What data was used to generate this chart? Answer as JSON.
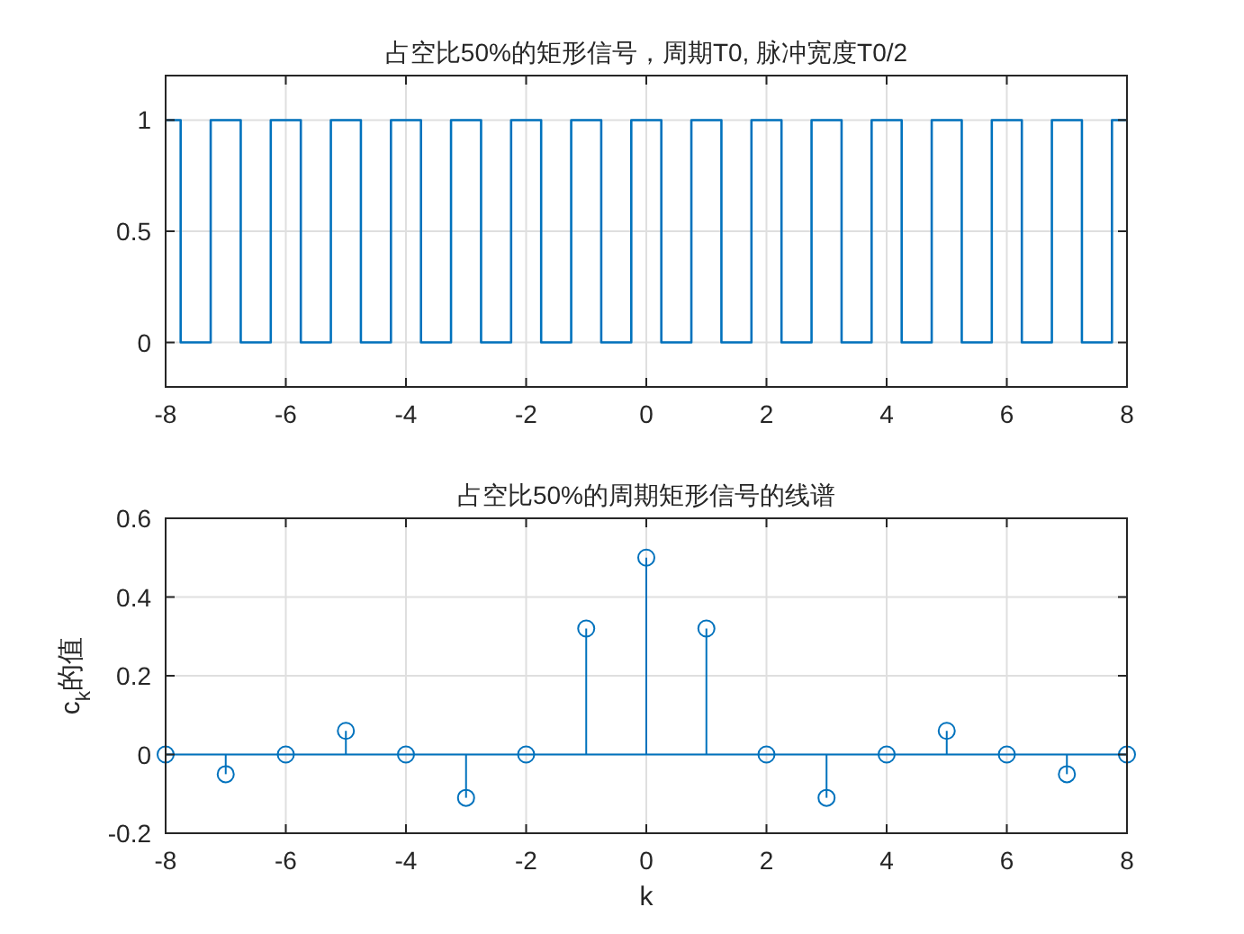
{
  "chart_data": [
    {
      "type": "step",
      "title": "占空比50%的矩形信号，周期T0, 脉冲宽度T0/2",
      "x": [
        -8,
        -7.75,
        -7.25,
        -6.75,
        -6.25,
        -5.75,
        -5.25,
        -4.75,
        -4.25,
        -3.75,
        -3.25,
        -2.75,
        -2.25,
        -1.75,
        -1.25,
        -0.75,
        -0.25,
        0.25,
        0.75,
        1.25,
        1.75,
        2.25,
        2.75,
        3.25,
        3.75,
        4.25,
        4.75,
        5.25,
        5.75,
        6.25,
        6.75,
        7.25,
        7.75,
        8
      ],
      "values": [
        1,
        0,
        1,
        0,
        1,
        0,
        1,
        0,
        1,
        0,
        1,
        0,
        1,
        0,
        1,
        0,
        1,
        0,
        1,
        0,
        1,
        0,
        1,
        0,
        1,
        0,
        1,
        0,
        1,
        0,
        1,
        0,
        1,
        1
      ],
      "color": "#0072bd",
      "xlim": [
        -8,
        8
      ],
      "ylim": [
        -0.2,
        1.2
      ],
      "xticks": [
        -8,
        -6,
        -4,
        -2,
        0,
        2,
        4,
        6,
        8
      ],
      "yticks": [
        0,
        0.5,
        1
      ],
      "grid": true,
      "marker": "none"
    },
    {
      "type": "lollipop",
      "title": "占空比50%的周期矩形信号的线谱",
      "xlabel": "k",
      "ylabel": "c$_{k}$的值",
      "x": [
        -8,
        -7,
        -6,
        -5,
        -4,
        -3,
        -2,
        -1,
        0,
        1,
        2,
        3,
        4,
        5,
        6,
        7,
        8
      ],
      "values": [
        0,
        -0.05,
        0,
        0.06,
        0,
        -0.11,
        0,
        0.32,
        0.5,
        0.32,
        0,
        -0.11,
        0,
        0.06,
        0,
        -0.05,
        0
      ],
      "color": "#0072bd",
      "xlim": [
        -8,
        8
      ],
      "ylim": [
        -0.2,
        0.6
      ],
      "xticks": [
        -8,
        -6,
        -4,
        -2,
        0,
        2,
        4,
        6,
        8
      ],
      "yticks": [
        -0.2,
        0,
        0.2,
        0.4,
        0.6
      ],
      "grid": true,
      "marker": "circle",
      "ref_lines": [
        {
          "axis": "y",
          "value": 0,
          "color": "#0072bd"
        }
      ]
    }
  ]
}
